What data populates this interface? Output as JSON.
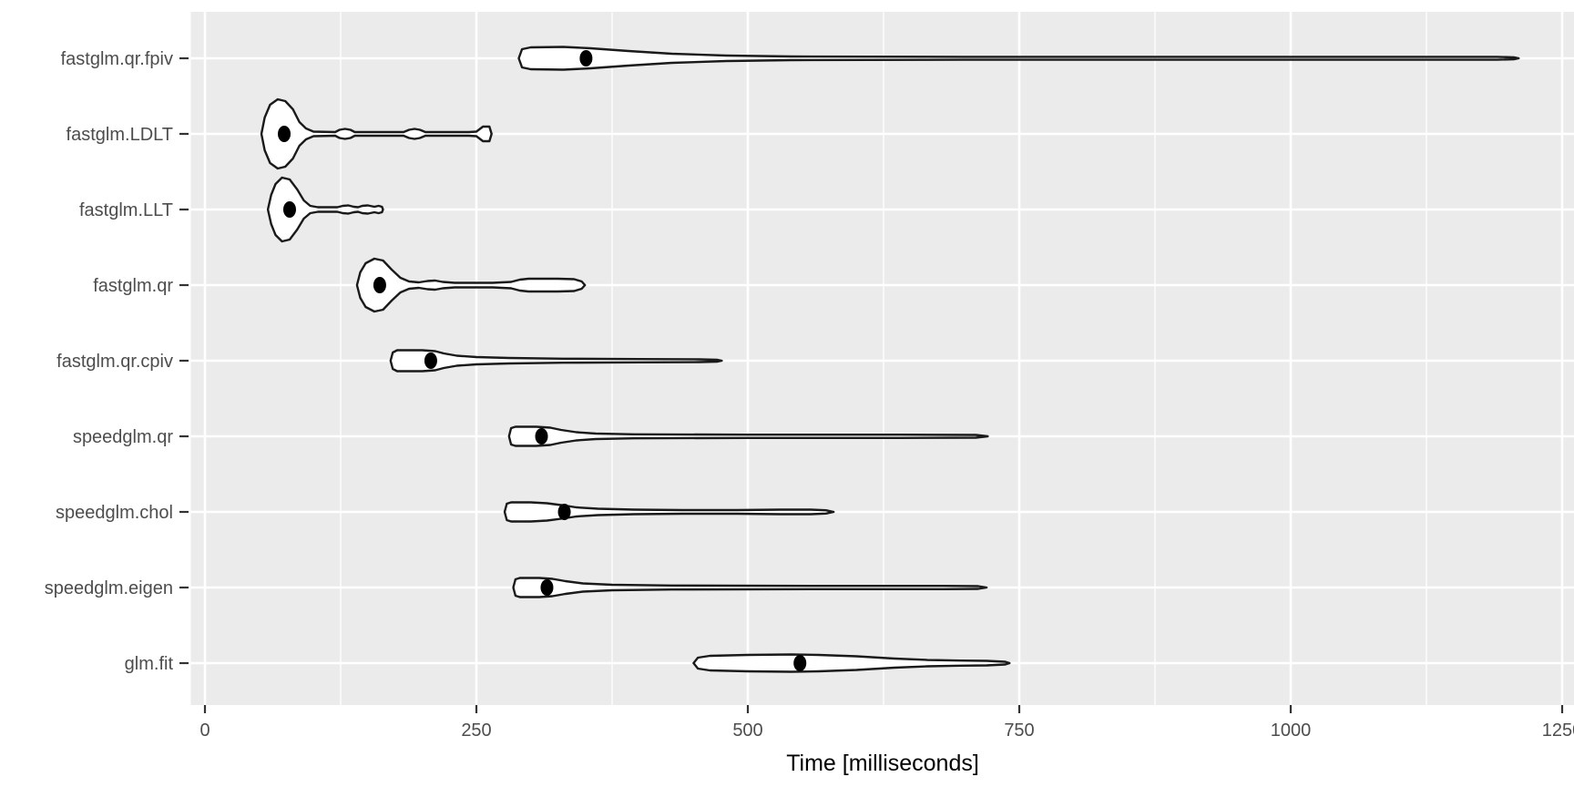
{
  "figure": {
    "background": "#ffffff"
  },
  "chart_data": {
    "type": "violin",
    "orientation": "horizontal",
    "title": "",
    "xlabel": "Time [milliseconds]",
    "ylabel": "",
    "x_ticks": [
      0,
      250,
      500,
      750,
      1000,
      1250
    ],
    "x_minor_ticks": [
      125,
      375,
      625,
      875,
      1125
    ],
    "xlim": [
      -13,
      1261
    ],
    "grid": true,
    "legend": "none",
    "categories": [
      "fastglm.qr.fpiv",
      "fastglm.LDLT",
      "fastglm.LLT",
      "fastglm.qr",
      "fastglm.qr.cpiv",
      "speedglm.qr",
      "speedglm.chol",
      "speedglm.eigen",
      "glm.fit"
    ],
    "series": [
      {
        "name": "fastglm.qr.fpiv",
        "median_ms": 351,
        "range_ms": [
          289,
          1210
        ],
        "profile_ms_halfwidth": [
          [
            289,
            0
          ],
          [
            292,
            10
          ],
          [
            300,
            12
          ],
          [
            330,
            12.5
          ],
          [
            355,
            11
          ],
          [
            390,
            8
          ],
          [
            430,
            5
          ],
          [
            480,
            3
          ],
          [
            540,
            2
          ],
          [
            700,
            1.6
          ],
          [
            1000,
            1.6
          ],
          [
            1190,
            1.6
          ],
          [
            1206,
            1
          ],
          [
            1210,
            0
          ]
        ]
      },
      {
        "name": "fastglm.LDLT",
        "median_ms": 73,
        "range_ms": [
          52,
          264
        ],
        "profile_ms_halfwidth": [
          [
            52,
            0
          ],
          [
            55,
            18
          ],
          [
            60,
            32
          ],
          [
            67,
            38
          ],
          [
            74,
            36
          ],
          [
            81,
            27
          ],
          [
            87,
            13
          ],
          [
            93,
            6
          ],
          [
            100,
            2.5
          ],
          [
            120,
            2
          ],
          [
            124,
            4.5
          ],
          [
            129,
            5.5
          ],
          [
            134,
            4.5
          ],
          [
            138,
            2
          ],
          [
            183,
            2
          ],
          [
            188,
            4.5
          ],
          [
            193,
            5.5
          ],
          [
            198,
            4.5
          ],
          [
            203,
            2
          ],
          [
            243,
            2
          ],
          [
            250,
            2.5
          ],
          [
            256,
            8
          ],
          [
            262,
            8
          ],
          [
            264,
            0
          ]
        ]
      },
      {
        "name": "fastglm.LLT",
        "median_ms": 78,
        "range_ms": [
          58,
          164
        ],
        "profile_ms_halfwidth": [
          [
            58,
            0
          ],
          [
            61,
            16
          ],
          [
            65,
            28
          ],
          [
            71,
            35
          ],
          [
            78,
            33
          ],
          [
            85,
            22
          ],
          [
            91,
            10
          ],
          [
            97,
            4
          ],
          [
            104,
            2.5
          ],
          [
            122,
            2.5
          ],
          [
            127,
            4
          ],
          [
            132,
            4.5
          ],
          [
            137,
            3
          ],
          [
            141,
            2.5
          ],
          [
            145,
            4
          ],
          [
            150,
            4.5
          ],
          [
            156,
            3
          ],
          [
            160,
            4
          ],
          [
            163,
            3
          ],
          [
            164,
            0
          ]
        ]
      },
      {
        "name": "fastglm.qr",
        "median_ms": 161,
        "range_ms": [
          140,
          350
        ],
        "profile_ms_halfwidth": [
          [
            140,
            0
          ],
          [
            143,
            14
          ],
          [
            148,
            24
          ],
          [
            156,
            29
          ],
          [
            164,
            27
          ],
          [
            172,
            17
          ],
          [
            180,
            8
          ],
          [
            188,
            4
          ],
          [
            197,
            3
          ],
          [
            205,
            4.5
          ],
          [
            212,
            5
          ],
          [
            219,
            3.5
          ],
          [
            230,
            2.5
          ],
          [
            265,
            2.5
          ],
          [
            282,
            3.5
          ],
          [
            290,
            6
          ],
          [
            298,
            7
          ],
          [
            325,
            7
          ],
          [
            340,
            6.5
          ],
          [
            347,
            4
          ],
          [
            350,
            0
          ]
        ]
      },
      {
        "name": "fastglm.qr.cpiv",
        "median_ms": 208,
        "range_ms": [
          171,
          476
        ],
        "profile_ms_halfwidth": [
          [
            171,
            0
          ],
          [
            173,
            9
          ],
          [
            177,
            11.5
          ],
          [
            200,
            11.5
          ],
          [
            212,
            10.5
          ],
          [
            220,
            8
          ],
          [
            232,
            5.5
          ],
          [
            250,
            4
          ],
          [
            280,
            3
          ],
          [
            330,
            2.2
          ],
          [
            400,
            1.8
          ],
          [
            455,
            1.5
          ],
          [
            472,
            1
          ],
          [
            476,
            0
          ]
        ]
      },
      {
        "name": "speedglm.qr",
        "median_ms": 310,
        "range_ms": [
          280,
          721
        ],
        "profile_ms_halfwidth": [
          [
            280,
            0
          ],
          [
            282,
            9
          ],
          [
            286,
            10.5
          ],
          [
            305,
            10.5
          ],
          [
            318,
            9.5
          ],
          [
            328,
            7
          ],
          [
            342,
            4.5
          ],
          [
            360,
            3
          ],
          [
            395,
            2.2
          ],
          [
            500,
            1.8
          ],
          [
            640,
            1.8
          ],
          [
            710,
            1.5
          ],
          [
            721,
            0
          ]
        ]
      },
      {
        "name": "speedglm.chol",
        "median_ms": 331,
        "range_ms": [
          276,
          579
        ],
        "profile_ms_halfwidth": [
          [
            276,
            0
          ],
          [
            278,
            9
          ],
          [
            282,
            10.5
          ],
          [
            300,
            10.5
          ],
          [
            315,
            9.5
          ],
          [
            328,
            7.5
          ],
          [
            342,
            5
          ],
          [
            362,
            3.5
          ],
          [
            395,
            2.5
          ],
          [
            440,
            2
          ],
          [
            490,
            2
          ],
          [
            530,
            2.5
          ],
          [
            558,
            2.5
          ],
          [
            572,
            1.8
          ],
          [
            579,
            0
          ]
        ]
      },
      {
        "name": "speedglm.eigen",
        "median_ms": 315,
        "range_ms": [
          284,
          720
        ],
        "profile_ms_halfwidth": [
          [
            284,
            0
          ],
          [
            286,
            9
          ],
          [
            290,
            10.5
          ],
          [
            308,
            10.5
          ],
          [
            320,
            9.5
          ],
          [
            332,
            7
          ],
          [
            348,
            4.5
          ],
          [
            375,
            3
          ],
          [
            430,
            2.2
          ],
          [
            560,
            1.8
          ],
          [
            680,
            1.8
          ],
          [
            712,
            1.5
          ],
          [
            720,
            0
          ]
        ]
      },
      {
        "name": "glm.fit",
        "median_ms": 548,
        "range_ms": [
          450,
          741
        ],
        "profile_ms_halfwidth": [
          [
            450,
            0
          ],
          [
            454,
            6
          ],
          [
            465,
            8
          ],
          [
            500,
            9
          ],
          [
            540,
            9.5
          ],
          [
            565,
            9
          ],
          [
            600,
            7.5
          ],
          [
            635,
            5
          ],
          [
            665,
            3.5
          ],
          [
            695,
            2.8
          ],
          [
            720,
            2.5
          ],
          [
            737,
            1.5
          ],
          [
            741,
            0
          ]
        ]
      }
    ],
    "colors": {
      "panel_bg": "#ebebeb",
      "grid_major": "#ffffff",
      "grid_minor": "#ffffff",
      "violin_fill": "#ffffff",
      "violin_stroke": "#1a1a1a",
      "median_dot": "#000000",
      "axis_text": "#4d4d4d",
      "axis_title": "#000000",
      "tick_mark": "#333333"
    }
  }
}
